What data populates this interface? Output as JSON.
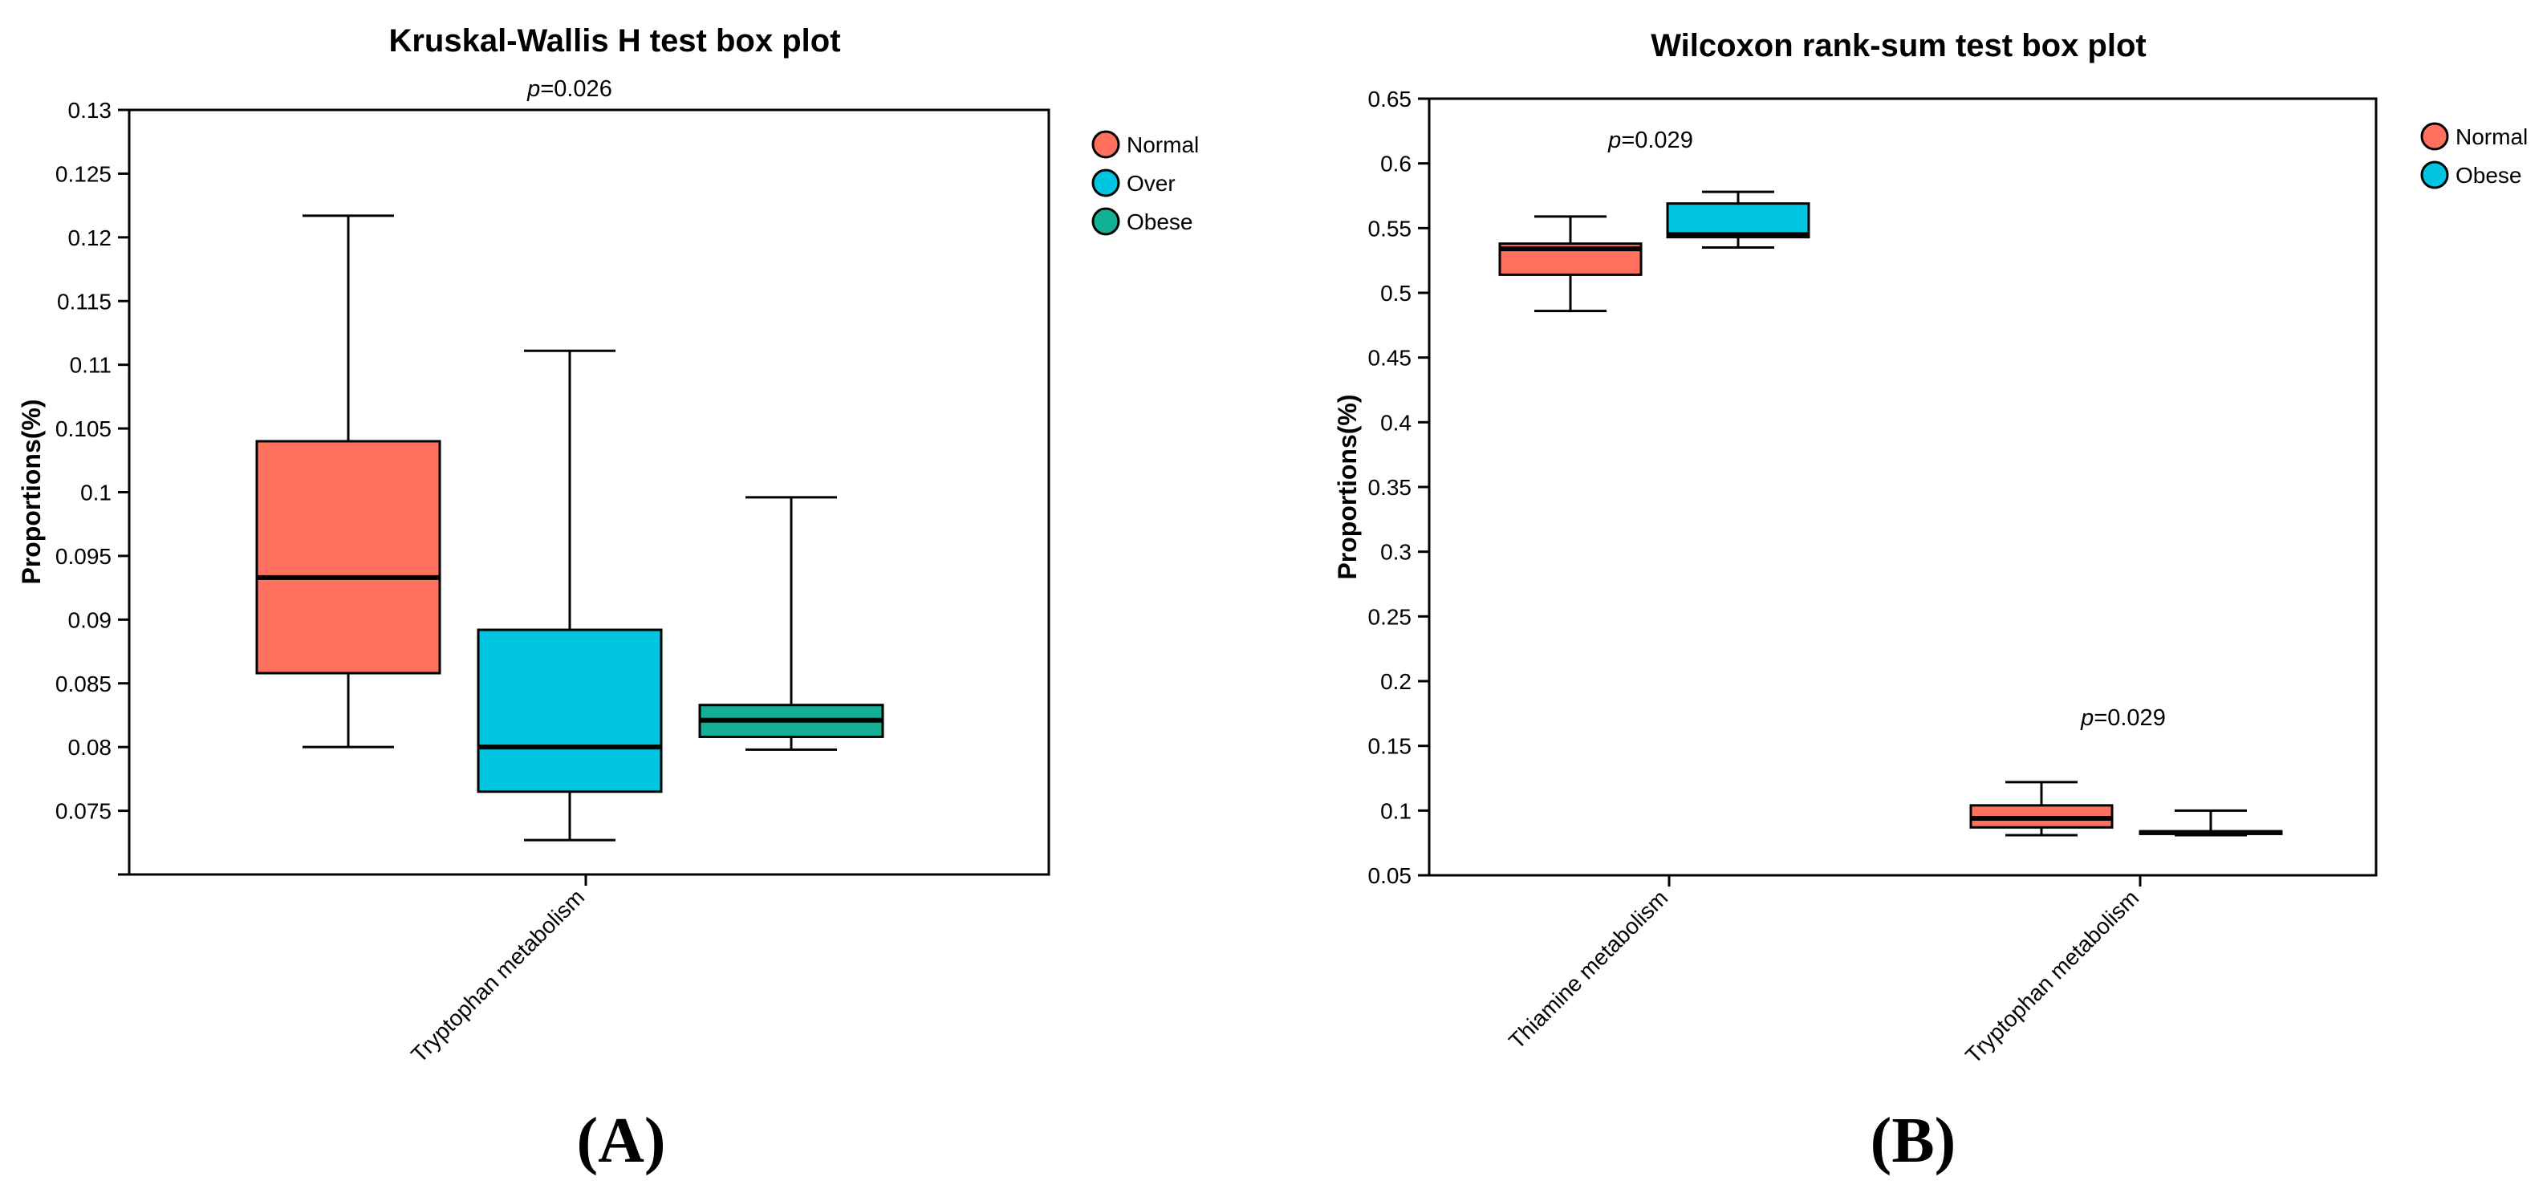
{
  "panel_labels": [
    "(A)",
    "(B)"
  ],
  "chart_data": [
    {
      "type": "boxplot",
      "title": "Kruskal-Wallis H test box plot",
      "ylabel": "Proportions(%)",
      "ylim": [
        0.07,
        0.13
      ],
      "yticks": [
        "0.075",
        "0.08",
        "0.085",
        "0.09",
        "0.095",
        "0.1",
        "0.105",
        "0.11",
        "0.115",
        "0.12",
        "0.125",
        "0.13"
      ],
      "categories": [
        "Tryptophan metabolism"
      ],
      "series": [
        {
          "name": "Normal",
          "color": "#ff715e",
          "boxes": [
            {
              "min": 0.08,
              "q1": 0.0858,
              "median": 0.0933,
              "q3": 0.104,
              "max": 0.1217
            }
          ]
        },
        {
          "name": "Over",
          "color": "#00c5e0",
          "boxes": [
            {
              "min": 0.0727,
              "q1": 0.0765,
              "median": 0.08,
              "q3": 0.0892,
              "max": 0.1111
            }
          ]
        },
        {
          "name": "Obese",
          "color": "#13b096",
          "boxes": [
            {
              "min": 0.0798,
              "q1": 0.0808,
              "median": 0.0821,
              "q3": 0.0833,
              "max": 0.0996
            }
          ]
        }
      ],
      "pvalues": [
        {
          "prefix": "p",
          "text": "=0.026"
        }
      ],
      "legend_position": "right"
    },
    {
      "type": "boxplot",
      "title": "Wilcoxon rank-sum test box plot",
      "ylabel": "Proportions(%)",
      "ylim": [
        0.05,
        0.65
      ],
      "yticks": [
        "0.05",
        "0.1",
        "0.15",
        "0.2",
        "0.25",
        "0.3",
        "0.35",
        "0.4",
        "0.45",
        "0.5",
        "0.55",
        "0.6",
        "0.65"
      ],
      "categories": [
        "Thiamine metabolism",
        "Tryptophan metabolism"
      ],
      "series": [
        {
          "name": "Normal",
          "color": "#ff715e",
          "boxes": [
            {
              "min": 0.486,
              "q1": 0.514,
              "median": 0.534,
              "q3": 0.538,
              "max": 0.559
            },
            {
              "min": 0.081,
              "q1": 0.087,
              "median": 0.094,
              "q3": 0.104,
              "max": 0.122
            }
          ]
        },
        {
          "name": "Obese",
          "color": "#00c5e0",
          "boxes": [
            {
              "min": 0.535,
              "q1": 0.543,
              "median": 0.545,
              "q3": 0.569,
              "max": 0.578
            },
            {
              "min": 0.081,
              "q1": 0.082,
              "median": 0.083,
              "q3": 0.084,
              "max": 0.1
            }
          ]
        }
      ],
      "pvalues": [
        {
          "prefix": "p",
          "text": "=0.029"
        },
        {
          "prefix": "p",
          "text": "=0.029"
        }
      ],
      "legend_position": "right"
    }
  ]
}
